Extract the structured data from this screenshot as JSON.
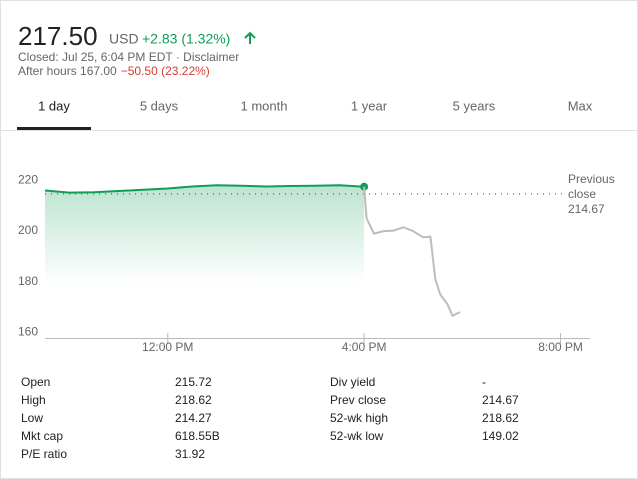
{
  "header": {
    "price": "217.50",
    "currency": "USD",
    "change": "+2.83 (1.32%)",
    "closed": "Closed: Jul 25, 6:04 PM EDT · Disclaimer",
    "after_hours": "After hours 167.00",
    "after_hours_change": "−50.50 (23.22%)"
  },
  "tabs": [
    "1 day",
    "5 days",
    "1 month",
    "1 year",
    "5 years",
    "Max"
  ],
  "selected_tab": 0,
  "chart_data": {
    "type": "line",
    "xlim": [
      9.5,
      20.6
    ],
    "xticks": [
      {
        "value": 12,
        "label": "12:00 PM"
      },
      {
        "value": 16,
        "label": "4:00 PM"
      },
      {
        "value": 20,
        "label": "8:00 PM"
      }
    ],
    "ylim": [
      157,
      232
    ],
    "yticks": [
      160,
      180,
      200,
      220
    ],
    "annotation": {
      "label": "Previous close",
      "value": 214.67
    },
    "series": [
      {
        "color": "#0f9d58",
        "area": true,
        "x": [
          9.5,
          10,
          10.5,
          11,
          11.5,
          12,
          12.5,
          13,
          13.5,
          14,
          14.5,
          15,
          15.5,
          16
        ],
        "values": [
          216,
          215.2,
          215.3,
          215.8,
          216.3,
          216.8,
          217.6,
          218.1,
          217.9,
          217.6,
          217.8,
          217.9,
          218.1,
          217.5
        ]
      },
      {
        "color": "#bdbdbd",
        "area": false,
        "x": [
          16,
          16.05,
          16.2,
          16.4,
          16.6,
          16.8,
          17,
          17.2,
          17.35,
          17.45,
          17.55,
          17.7,
          17.8,
          17.95
        ],
        "values": [
          217.5,
          205,
          199,
          200,
          200.2,
          201.5,
          200,
          197.5,
          197.8,
          181,
          175,
          171,
          166.5,
          168
        ]
      }
    ]
  },
  "stats": {
    "left": [
      [
        "Open",
        "215.72"
      ],
      [
        "High",
        "218.62"
      ],
      [
        "Low",
        "214.27"
      ],
      [
        "Mkt cap",
        "618.55B"
      ],
      [
        "P/E ratio",
        "31.92"
      ]
    ],
    "right": [
      [
        "Div yield",
        "-"
      ],
      [
        "Prev close",
        "214.67"
      ],
      [
        "52-wk high",
        "218.62"
      ],
      [
        "52-wk low",
        "149.02"
      ]
    ]
  }
}
